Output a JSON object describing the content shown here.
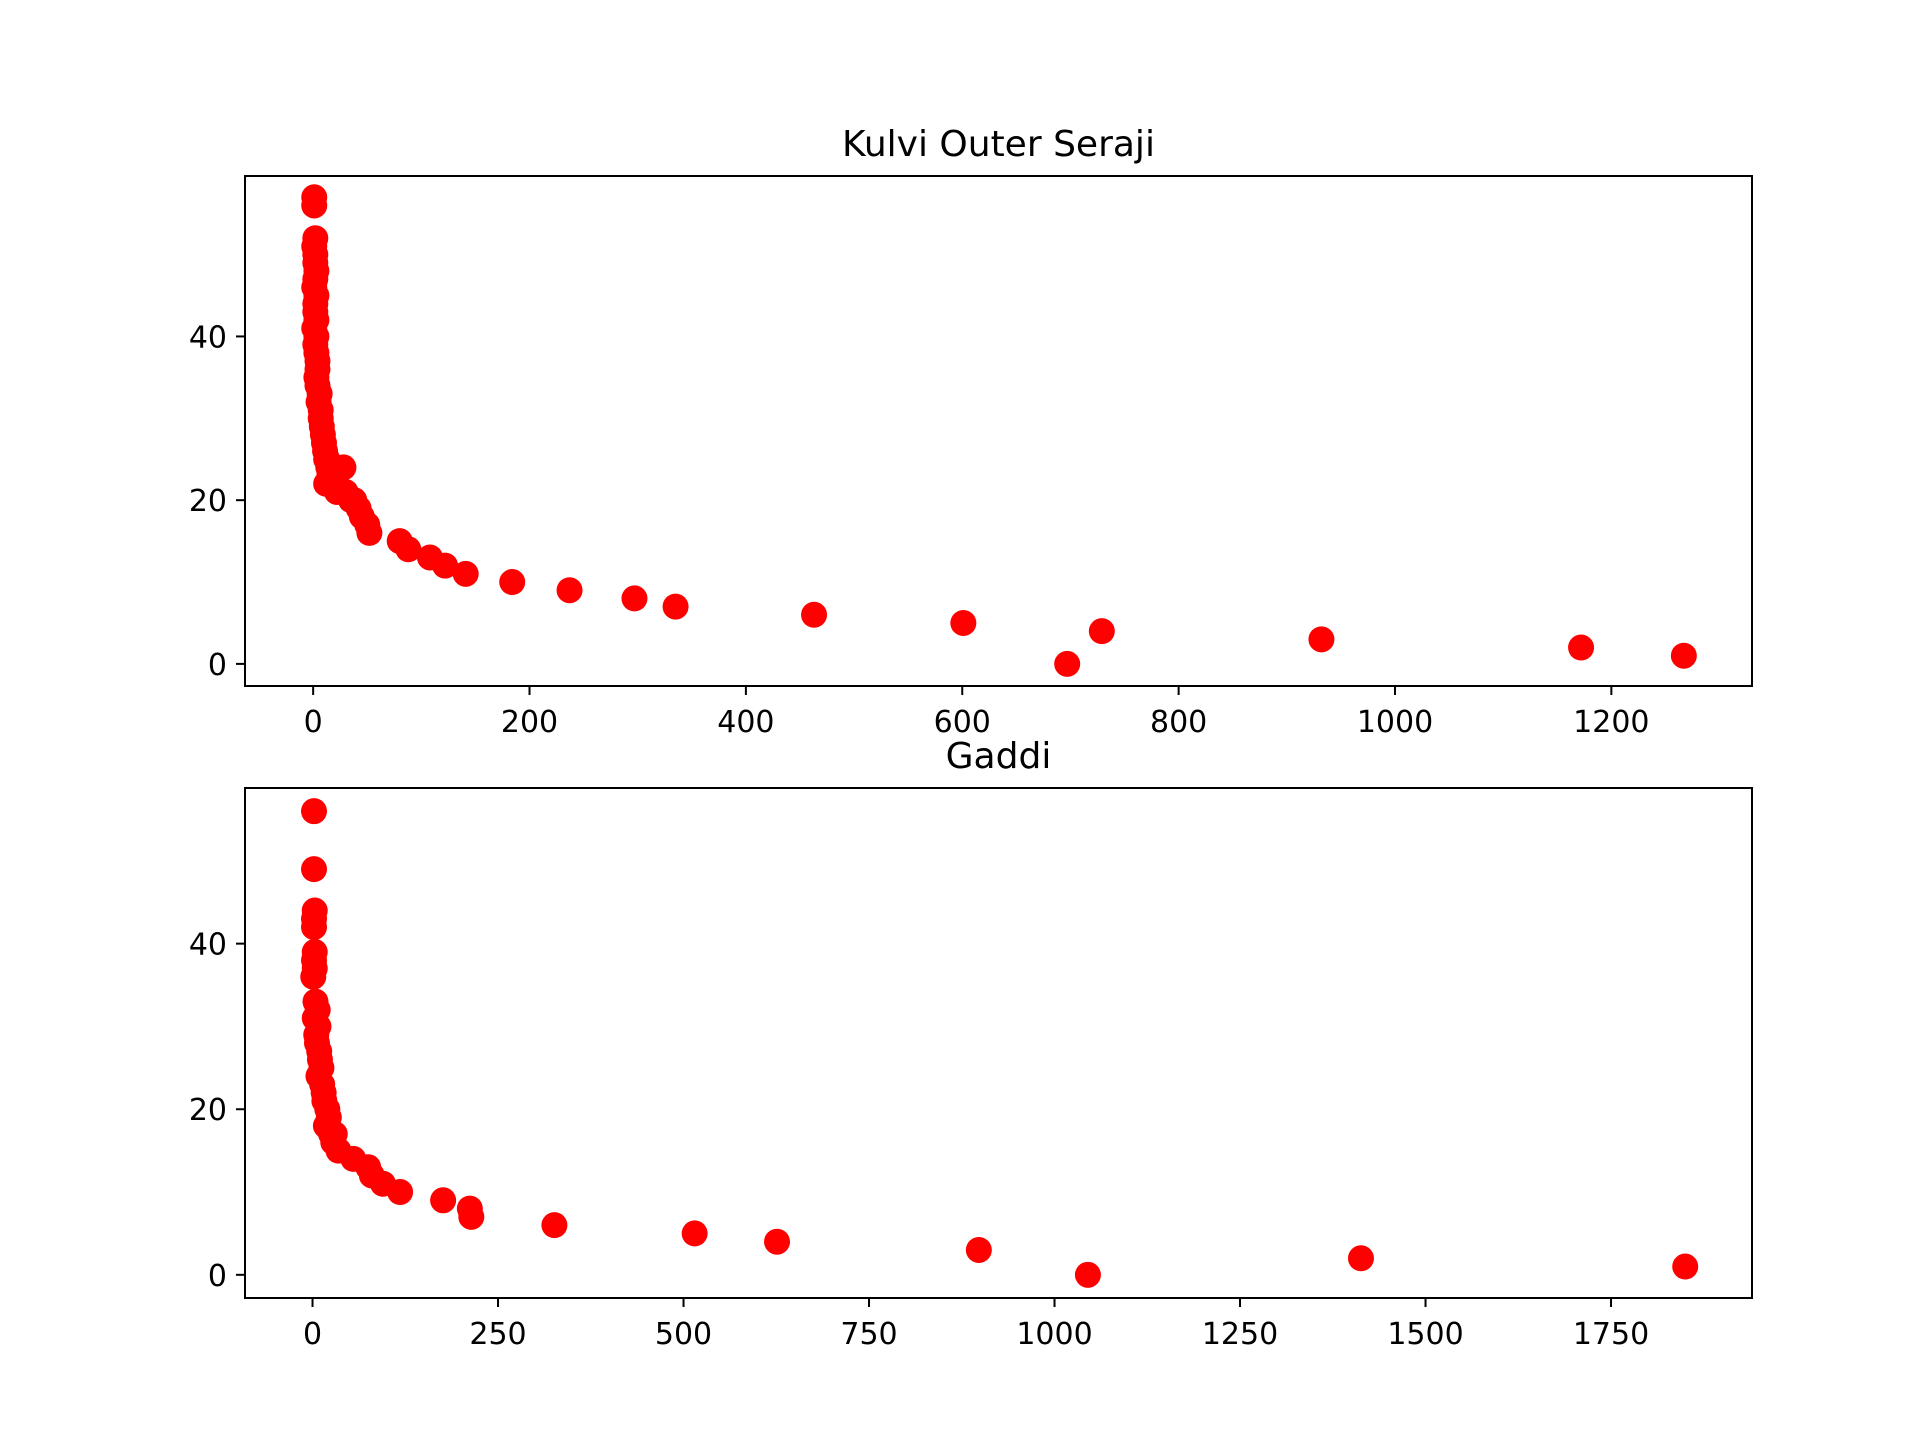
{
  "chart_data": [
    {
      "type": "scatter",
      "title": "Kulvi Outer Seraji",
      "xlabel": "",
      "ylabel": "",
      "xlim": [
        -63,
        1330
      ],
      "ylim": [
        -2.7,
        59.6
      ],
      "xticks": [
        0,
        200,
        400,
        600,
        800,
        1000,
        1200
      ],
      "yticks": [
        0,
        20,
        40
      ],
      "grid": false,
      "marker_color": "#ff0000",
      "series": [
        {
          "x": [
            1,
            1,
            2,
            1,
            2,
            2,
            3,
            2,
            1,
            3,
            2,
            2,
            3,
            1,
            3,
            2,
            3,
            4,
            4,
            3,
            4,
            6,
            5,
            7,
            7,
            8,
            9,
            10,
            11,
            12,
            13,
            14,
            15,
            16,
            17,
            18,
            12,
            22,
            28,
            30,
            35,
            38,
            42,
            45,
            50,
            52,
            80,
            88,
            108,
            122,
            141,
            184,
            237,
            297,
            335,
            463,
            601,
            697,
            729,
            932,
            1172,
            1267
          ],
          "y": [
            57,
            56,
            52,
            51,
            50,
            49,
            48,
            47,
            46,
            45,
            44,
            43,
            42,
            41,
            40,
            39,
            38,
            37,
            36,
            35,
            34,
            33,
            32,
            31,
            30,
            29,
            28,
            27,
            26,
            25,
            25,
            24,
            23,
            22,
            22,
            24,
            22,
            21,
            24,
            21,
            20,
            20,
            19,
            18,
            17,
            16,
            15,
            14,
            13,
            12,
            11,
            10,
            9,
            8,
            7,
            6,
            5,
            0,
            4,
            3,
            2,
            1
          ]
        }
      ]
    },
    {
      "type": "scatter",
      "title": "Gaddi",
      "xlabel": "",
      "ylabel": "",
      "xlim": [
        -91,
        1940
      ],
      "ylim": [
        -2.8,
        58.8
      ],
      "xticks": [
        0,
        250,
        500,
        750,
        1000,
        1250,
        1500,
        1750
      ],
      "yticks": [
        0,
        20,
        40
      ],
      "grid": false,
      "marker_color": "#ff0000",
      "series": [
        {
          "x": [
            2,
            2,
            3,
            2,
            2,
            3,
            2,
            3,
            1,
            4,
            7,
            3,
            8,
            5,
            6,
            9,
            10,
            12,
            8,
            15,
            13,
            16,
            20,
            22,
            18,
            25,
            28,
            30,
            35,
            55,
            75,
            80,
            95,
            118,
            176,
            212,
            214,
            326,
            515,
            626,
            898,
            1045,
            1413,
            1850
          ],
          "y": [
            56,
            49,
            44,
            43,
            42,
            39,
            38,
            37,
            36,
            33,
            32,
            31,
            30,
            29,
            28,
            27,
            26,
            25,
            24,
            22,
            23,
            21,
            20,
            19,
            18,
            17,
            16,
            17,
            15,
            14,
            13,
            12,
            11,
            10,
            9,
            8,
            7,
            6,
            5,
            4,
            3,
            0,
            2,
            1
          ]
        }
      ]
    }
  ]
}
